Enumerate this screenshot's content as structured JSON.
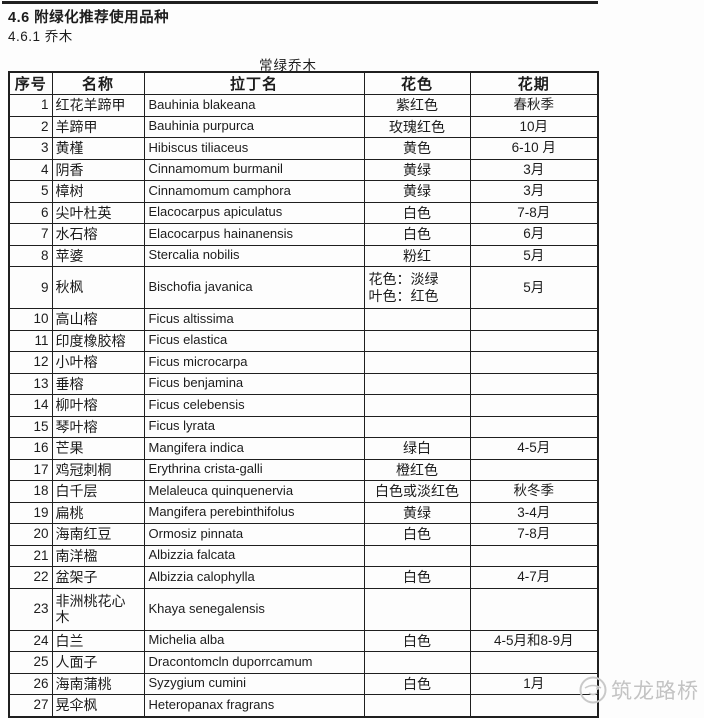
{
  "page": {
    "heading": "4.6 附绿化推荐使用品种",
    "subheading": "4.6.1 乔木",
    "table_title": "常绿乔木"
  },
  "table": {
    "headers": [
      "序号",
      "名称",
      "拉丁名",
      "花色",
      "花期"
    ],
    "rows": [
      {
        "no": "1",
        "name": "红花羊蹄甲",
        "latin": "Bauhinia blakeana",
        "color": "紫红色",
        "period": "春秋季"
      },
      {
        "no": "2",
        "name": "羊蹄甲",
        "latin": "Bauhinia purpurca",
        "color": "玫瑰红色",
        "period": "10月"
      },
      {
        "no": "3",
        "name": "黄槿",
        "latin": "Hibiscus tiliaceus",
        "color": "黄色",
        "period": "6-10 月"
      },
      {
        "no": "4",
        "name": "阴香",
        "latin": "Cinnamomum burmanil",
        "color": "黄绿",
        "period": "3月"
      },
      {
        "no": "5",
        "name": "樟树",
        "latin": "Cinnamomum camphora",
        "color": "黄绿",
        "period": "3月"
      },
      {
        "no": "6",
        "name": "尖叶杜英",
        "latin": "Elacocarpus apiculatus",
        "color": "白色",
        "period": "7-8月"
      },
      {
        "no": "7",
        "name": "水石榕",
        "latin": "Elacocarpus hainanensis",
        "color": "白色",
        "period": "6月"
      },
      {
        "no": "8",
        "name": "苹婆",
        "latin": "Stercalia nobilis",
        "color": "粉红",
        "period": "5月"
      },
      {
        "no": "9",
        "name": "秋枫",
        "latin": "Bischofia javanica",
        "color": "花色：淡绿\n叶色：红色",
        "period": "5月"
      },
      {
        "no": "10",
        "name": "高山榕",
        "latin": "Ficus altissima",
        "color": "",
        "period": ""
      },
      {
        "no": "11",
        "name": "印度橡胶榕",
        "latin": "Ficus elastica",
        "color": "",
        "period": ""
      },
      {
        "no": "12",
        "name": "小叶榕",
        "latin": "Ficus microcarpa",
        "color": "",
        "period": ""
      },
      {
        "no": "13",
        "name": "垂榕",
        "latin": "Ficus benjamina",
        "color": "",
        "period": ""
      },
      {
        "no": "14",
        "name": "柳叶榕",
        "latin": "Ficus celebensis",
        "color": "",
        "period": ""
      },
      {
        "no": "15",
        "name": "琴叶榕",
        "latin": "Ficus lyrata",
        "color": "",
        "period": ""
      },
      {
        "no": "16",
        "name": "芒果",
        "latin": "Mangifera indica",
        "color": "绿白",
        "period": "4-5月"
      },
      {
        "no": "17",
        "name": "鸡冠刺桐",
        "latin": "Erythrina crista-galli",
        "color": "橙红色",
        "period": ""
      },
      {
        "no": "18",
        "name": "白千层",
        "latin": "Melaleuca quinquenervia",
        "color": "白色或淡红色",
        "period": "秋冬季"
      },
      {
        "no": "19",
        "name": "扁桃",
        "latin": "Mangifera perebinthifolus",
        "color": "黄绿",
        "period": "3-4月"
      },
      {
        "no": "20",
        "name": "海南红豆",
        "latin": "Ormosiz pinnata",
        "color": "白色",
        "period": "7-8月"
      },
      {
        "no": "21",
        "name": "南洋楹",
        "latin": "Albizzia falcata",
        "color": "",
        "period": ""
      },
      {
        "no": "22",
        "name": "盆架子",
        "latin": "Albizzia calophylla",
        "color": "白色",
        "period": "4-7月"
      },
      {
        "no": "23",
        "name": "非洲桃花心木",
        "latin": "Khaya senegalensis",
        "color": "",
        "period": ""
      },
      {
        "no": "24",
        "name": "白兰",
        "latin": "Michelia alba",
        "color": "白色",
        "period": "4-5月和8-9月"
      },
      {
        "no": "25",
        "name": "人面子",
        "latin": "Dracontomcln duporrcamum",
        "color": "",
        "period": ""
      },
      {
        "no": "26",
        "name": "海南蒲桃",
        "latin": "Syzygium cumini",
        "color": "白色",
        "period": "1月"
      },
      {
        "no": "27",
        "name": "晃伞枫",
        "latin": "Heteropanax fragrans",
        "color": "",
        "period": ""
      }
    ]
  },
  "watermark": {
    "text": "筑龙路桥",
    "logo": "zhulong-logo-icon",
    "color": "#c3c3c3"
  },
  "colors": {
    "text": "#1c1c1c",
    "table_border": "#1f1f1f",
    "background": "#fdfdfd"
  }
}
